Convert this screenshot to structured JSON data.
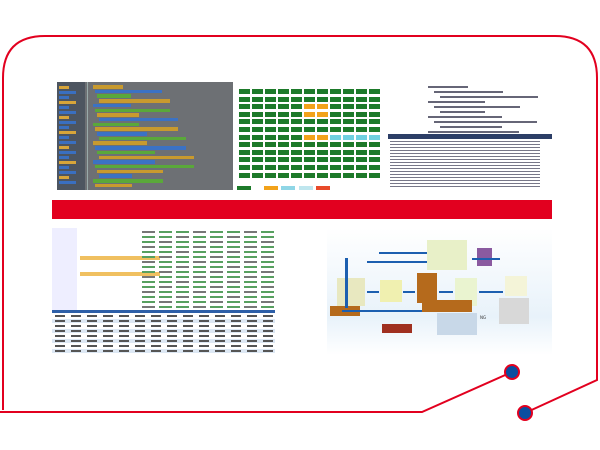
{
  "colors": {
    "frame": "#e2001f",
    "dot": "#0a4ea0",
    "bar": "#e2001f",
    "block_green": "#1d7a2a",
    "block_orange": "#f2a21a",
    "block_cyan": "#6fd0e0",
    "arrow": "#1c5fb0"
  },
  "panels": [
    {
      "icon": "visual-programming-blocks-image"
    },
    {
      "icon": "status-grid-image"
    },
    {
      "icon": "code-editor-image"
    },
    {
      "icon": "data-table-image"
    },
    {
      "icon": "logistics-flowchart-image",
      "label": "NG"
    }
  ]
}
